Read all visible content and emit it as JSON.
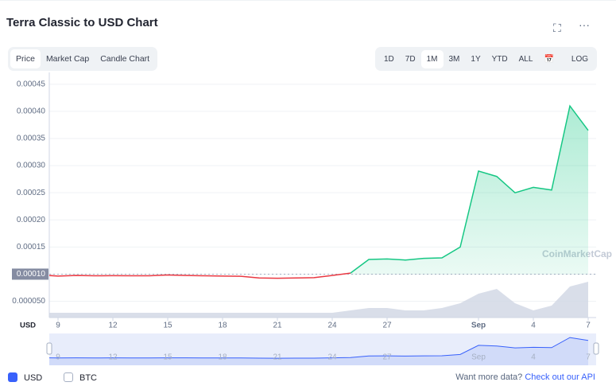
{
  "header": {
    "title": "Terra Classic to USD Chart"
  },
  "tabs": [
    "Price",
    "Market Cap",
    "Candle Chart"
  ],
  "ranges": [
    "1D",
    "7D",
    "1M",
    "3M",
    "1Y",
    "YTD",
    "ALL"
  ],
  "log_button": "LOG",
  "watermark": "CoinMarketCap",
  "footer": {
    "currencies": [
      "USD",
      "BTC"
    ],
    "prompt": "Want more data?",
    "link": "Check out our API"
  },
  "chart_data": {
    "type": "line",
    "y_axis_label": "USD",
    "categories": [
      null,
      "9",
      null,
      null,
      "12",
      null,
      null,
      "15",
      null,
      null,
      "18",
      null,
      null,
      "21",
      null,
      null,
      "24",
      null,
      null,
      "27",
      null,
      null,
      null,
      null,
      "Sep",
      null,
      null,
      "4",
      null,
      null,
      "7"
    ],
    "series": [
      {
        "name": "Price",
        "up_color": "#16c784",
        "down_color": "#ea3943",
        "values": [
          9.85e-05,
          9.65e-05,
          9.75e-05,
          9.7e-05,
          9.72e-05,
          9.7e-05,
          9.7e-05,
          9.85e-05,
          9.75e-05,
          9.7e-05,
          9.65e-05,
          9.6e-05,
          9.3e-05,
          9.25e-05,
          9.3e-05,
          9.35e-05,
          9.75e-05,
          0.000102,
          0.000127,
          0.000128,
          0.000126,
          0.000129,
          0.00013,
          0.00015,
          0.00029,
          0.00028,
          0.00025,
          0.00026,
          0.000255,
          0.00041,
          0.000365
        ]
      },
      {
        "name": "Volume",
        "axis": "y2",
        "color": "#cfd6e4",
        "values": [
          2,
          2,
          2,
          2,
          2,
          2,
          2,
          2,
          2,
          2,
          2,
          2,
          2,
          2,
          2,
          2,
          2,
          3,
          4,
          4,
          3,
          3,
          4,
          6,
          10,
          12,
          6,
          3,
          5,
          13,
          15
        ]
      }
    ],
    "baseline": {
      "value": 0.0001
    },
    "ylim": [
      2e-05,
      0.00046
    ],
    "yticks": [
      {
        "value": 5e-05,
        "label": "0.000050"
      },
      {
        "value": 0.0001,
        "label": "0.00010"
      },
      0.00015,
      {
        "value": 0.0002,
        "label": "0.00020"
      },
      0.00025,
      {
        "value": 0.0003,
        "label": "0.00030"
      },
      0.00035,
      {
        "value": 0.0004,
        "label": "0.00040"
      },
      0.00045
    ],
    "y2lim": [
      0,
      100
    ],
    "grid": true
  }
}
